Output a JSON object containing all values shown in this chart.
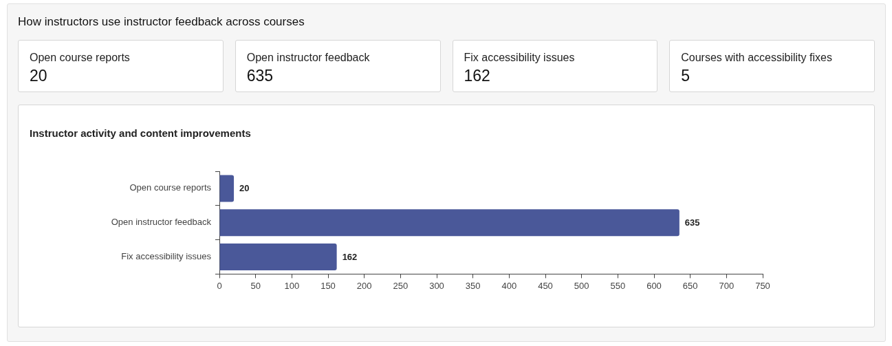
{
  "chart_data": [
    {
      "type": "other",
      "title": "How instructors use instructor feedback across courses",
      "annotations": [
        "Open course reports",
        "20",
        "Open instructor feedback",
        "635",
        "Fix accessibility issues",
        "162",
        "Courses with accessibility fixes",
        "5"
      ]
    },
    {
      "type": "bar",
      "orientation": "horizontal",
      "title": "Instructor activity and content improvements",
      "categories": [
        "Open course reports",
        "Open instructor feedback",
        "Fix accessibility issues"
      ],
      "values": [
        20,
        635,
        162
      ],
      "color": "#4a5899",
      "xlim": [
        0,
        750
      ],
      "xticks": [
        0,
        50,
        100,
        150,
        200,
        250,
        300,
        350,
        400,
        450,
        500,
        550,
        600,
        650,
        700,
        750
      ],
      "data_labels": true,
      "legend": false
    }
  ]
}
